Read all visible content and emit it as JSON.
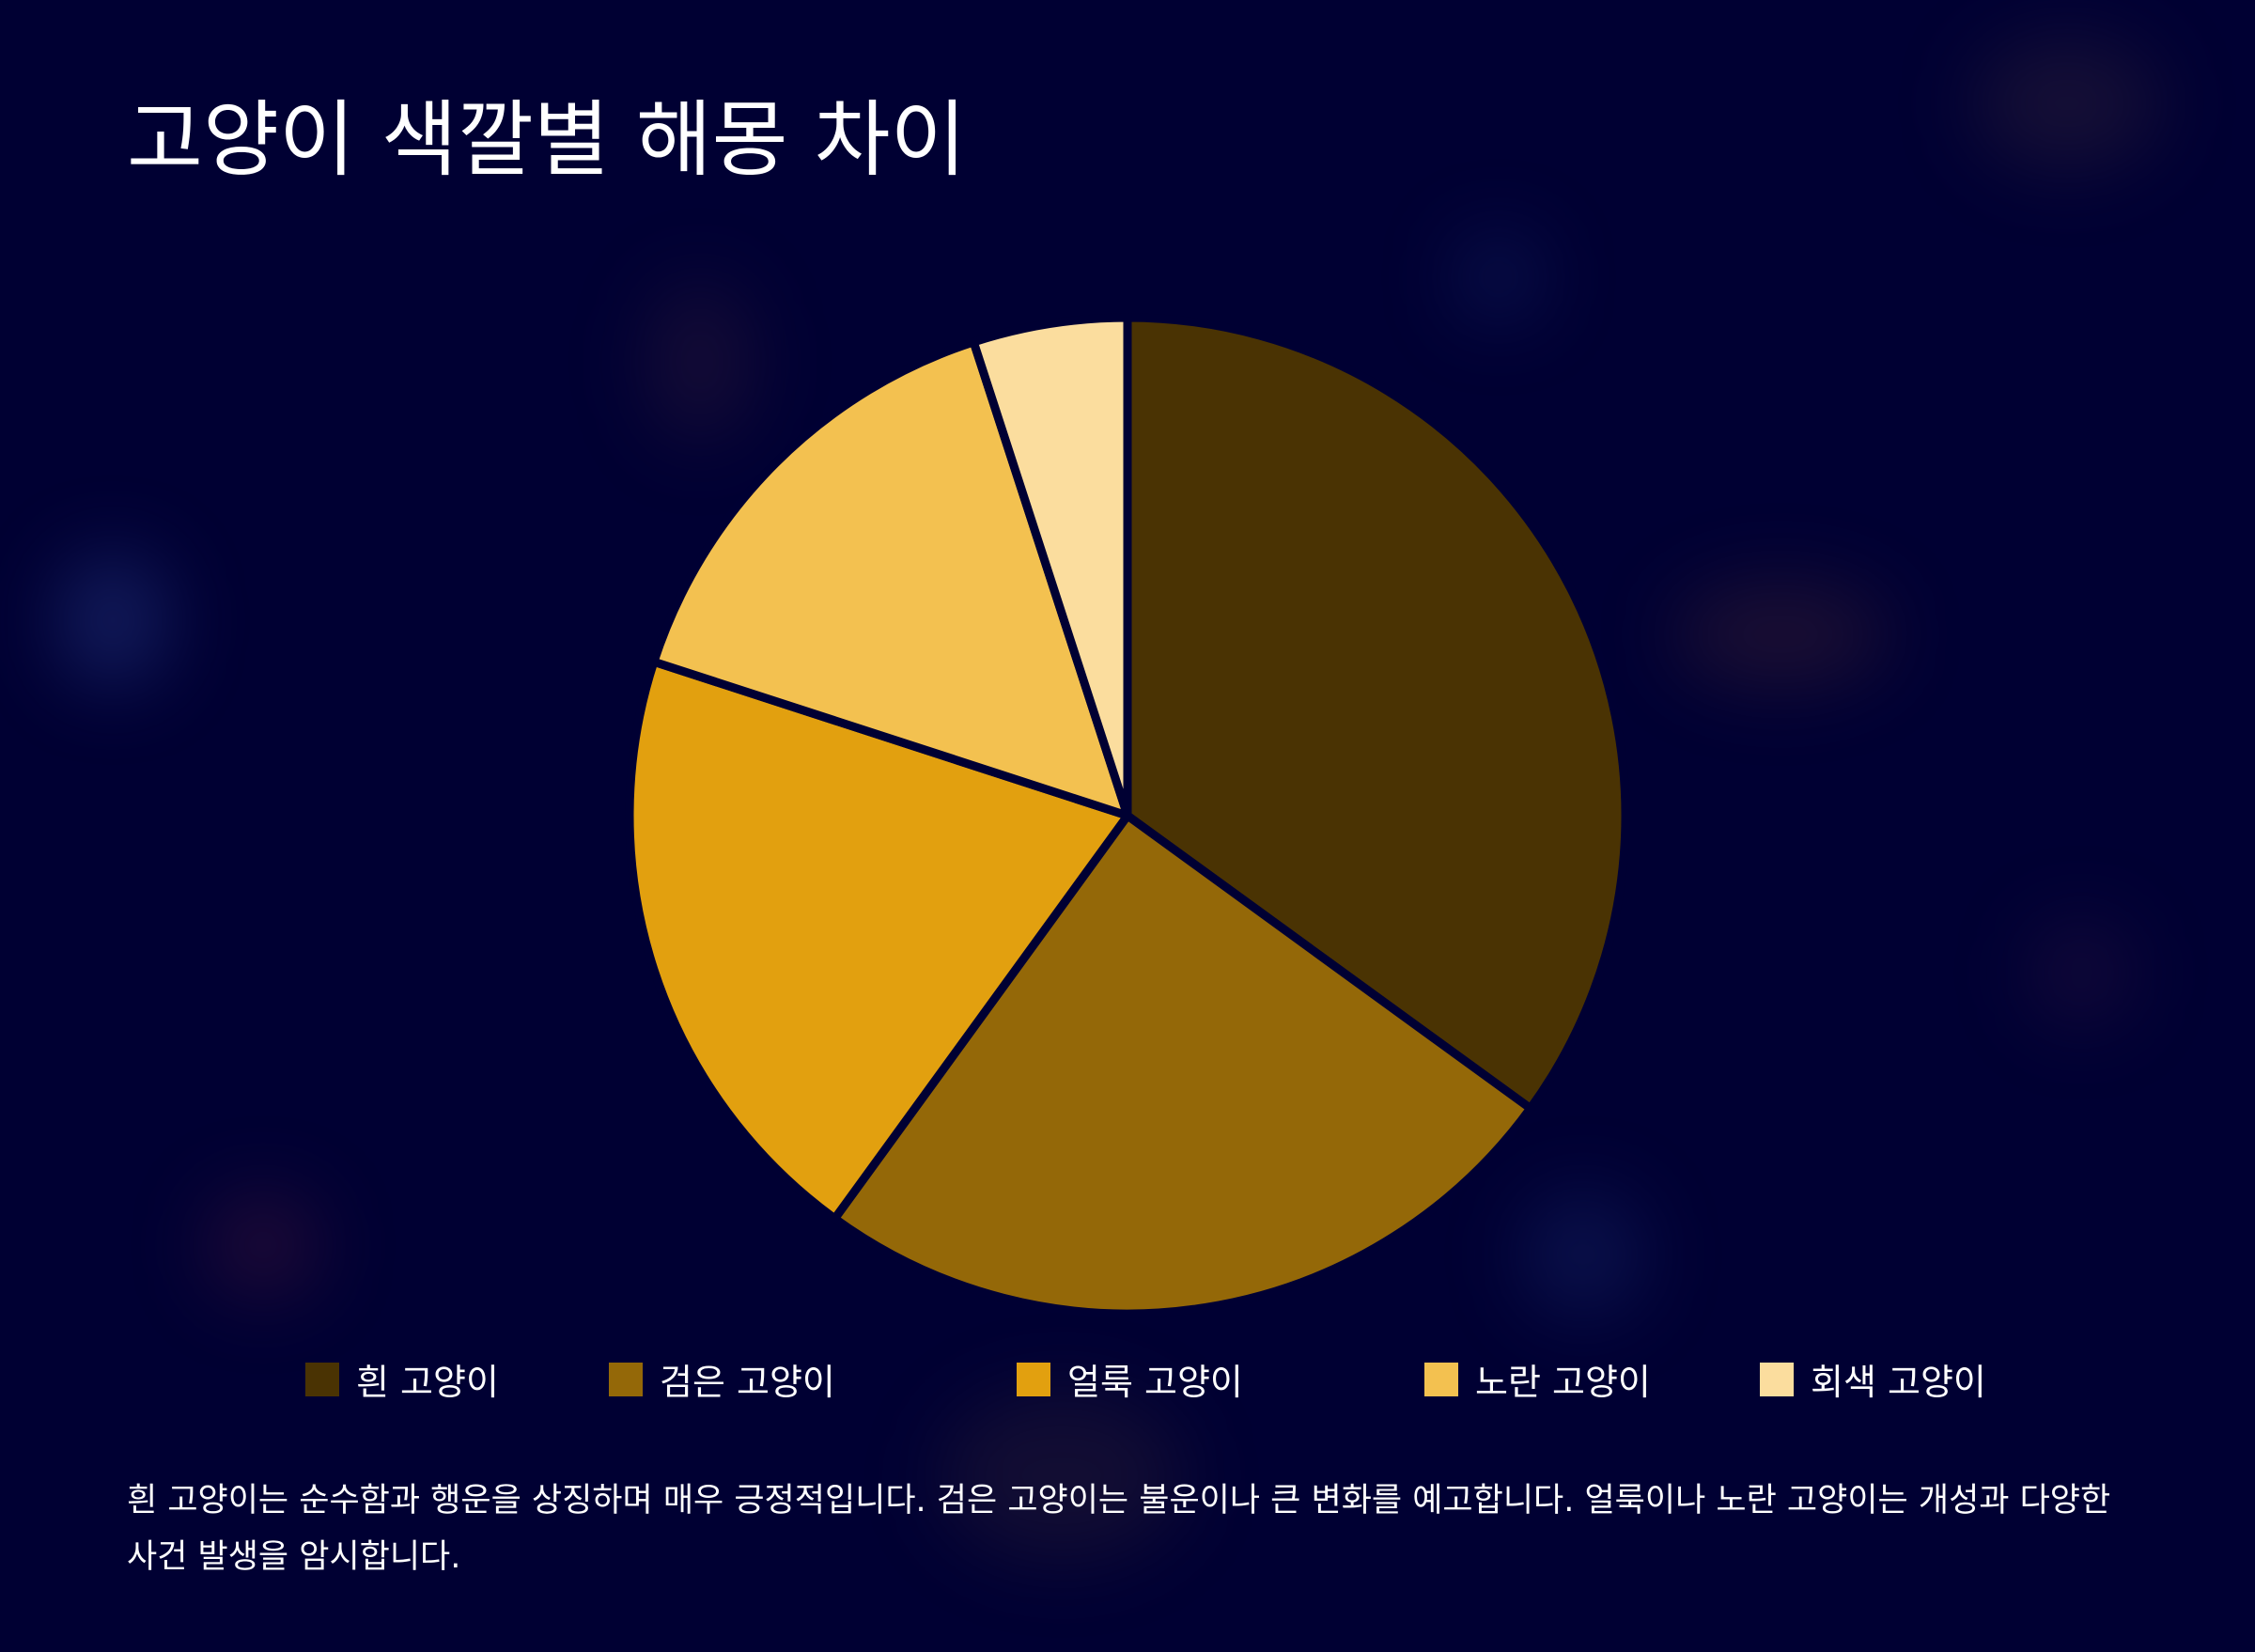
{
  "title": "고양이 색깔별 해몽 차이",
  "description": "흰 고양이는 순수함과 행운을 상징하며 매우 긍정적입니다. 검은 고양이는 불운이나 큰 변화를 예고합니다. 얼룩이나 노란 고양이는 개성과 다양한 사건 발생을 암시합니다.",
  "colors": {
    "background": "#000033",
    "separator": "#000033"
  },
  "chart_data": {
    "type": "pie",
    "title": "고양이 색깔별 해몽 차이",
    "legend_position": "bottom",
    "slices": [
      {
        "label": "흰 고양이",
        "value": 35,
        "color": "#4a3303"
      },
      {
        "label": "검은 고양이",
        "value": 25,
        "color": "#946808"
      },
      {
        "label": "얼룩 고양이",
        "value": 20,
        "color": "#e2a00f"
      },
      {
        "label": "노란 고양이",
        "value": 15,
        "color": "#f3c150"
      },
      {
        "label": "회색 고양이",
        "value": 5,
        "color": "#fbdd9e"
      }
    ]
  }
}
